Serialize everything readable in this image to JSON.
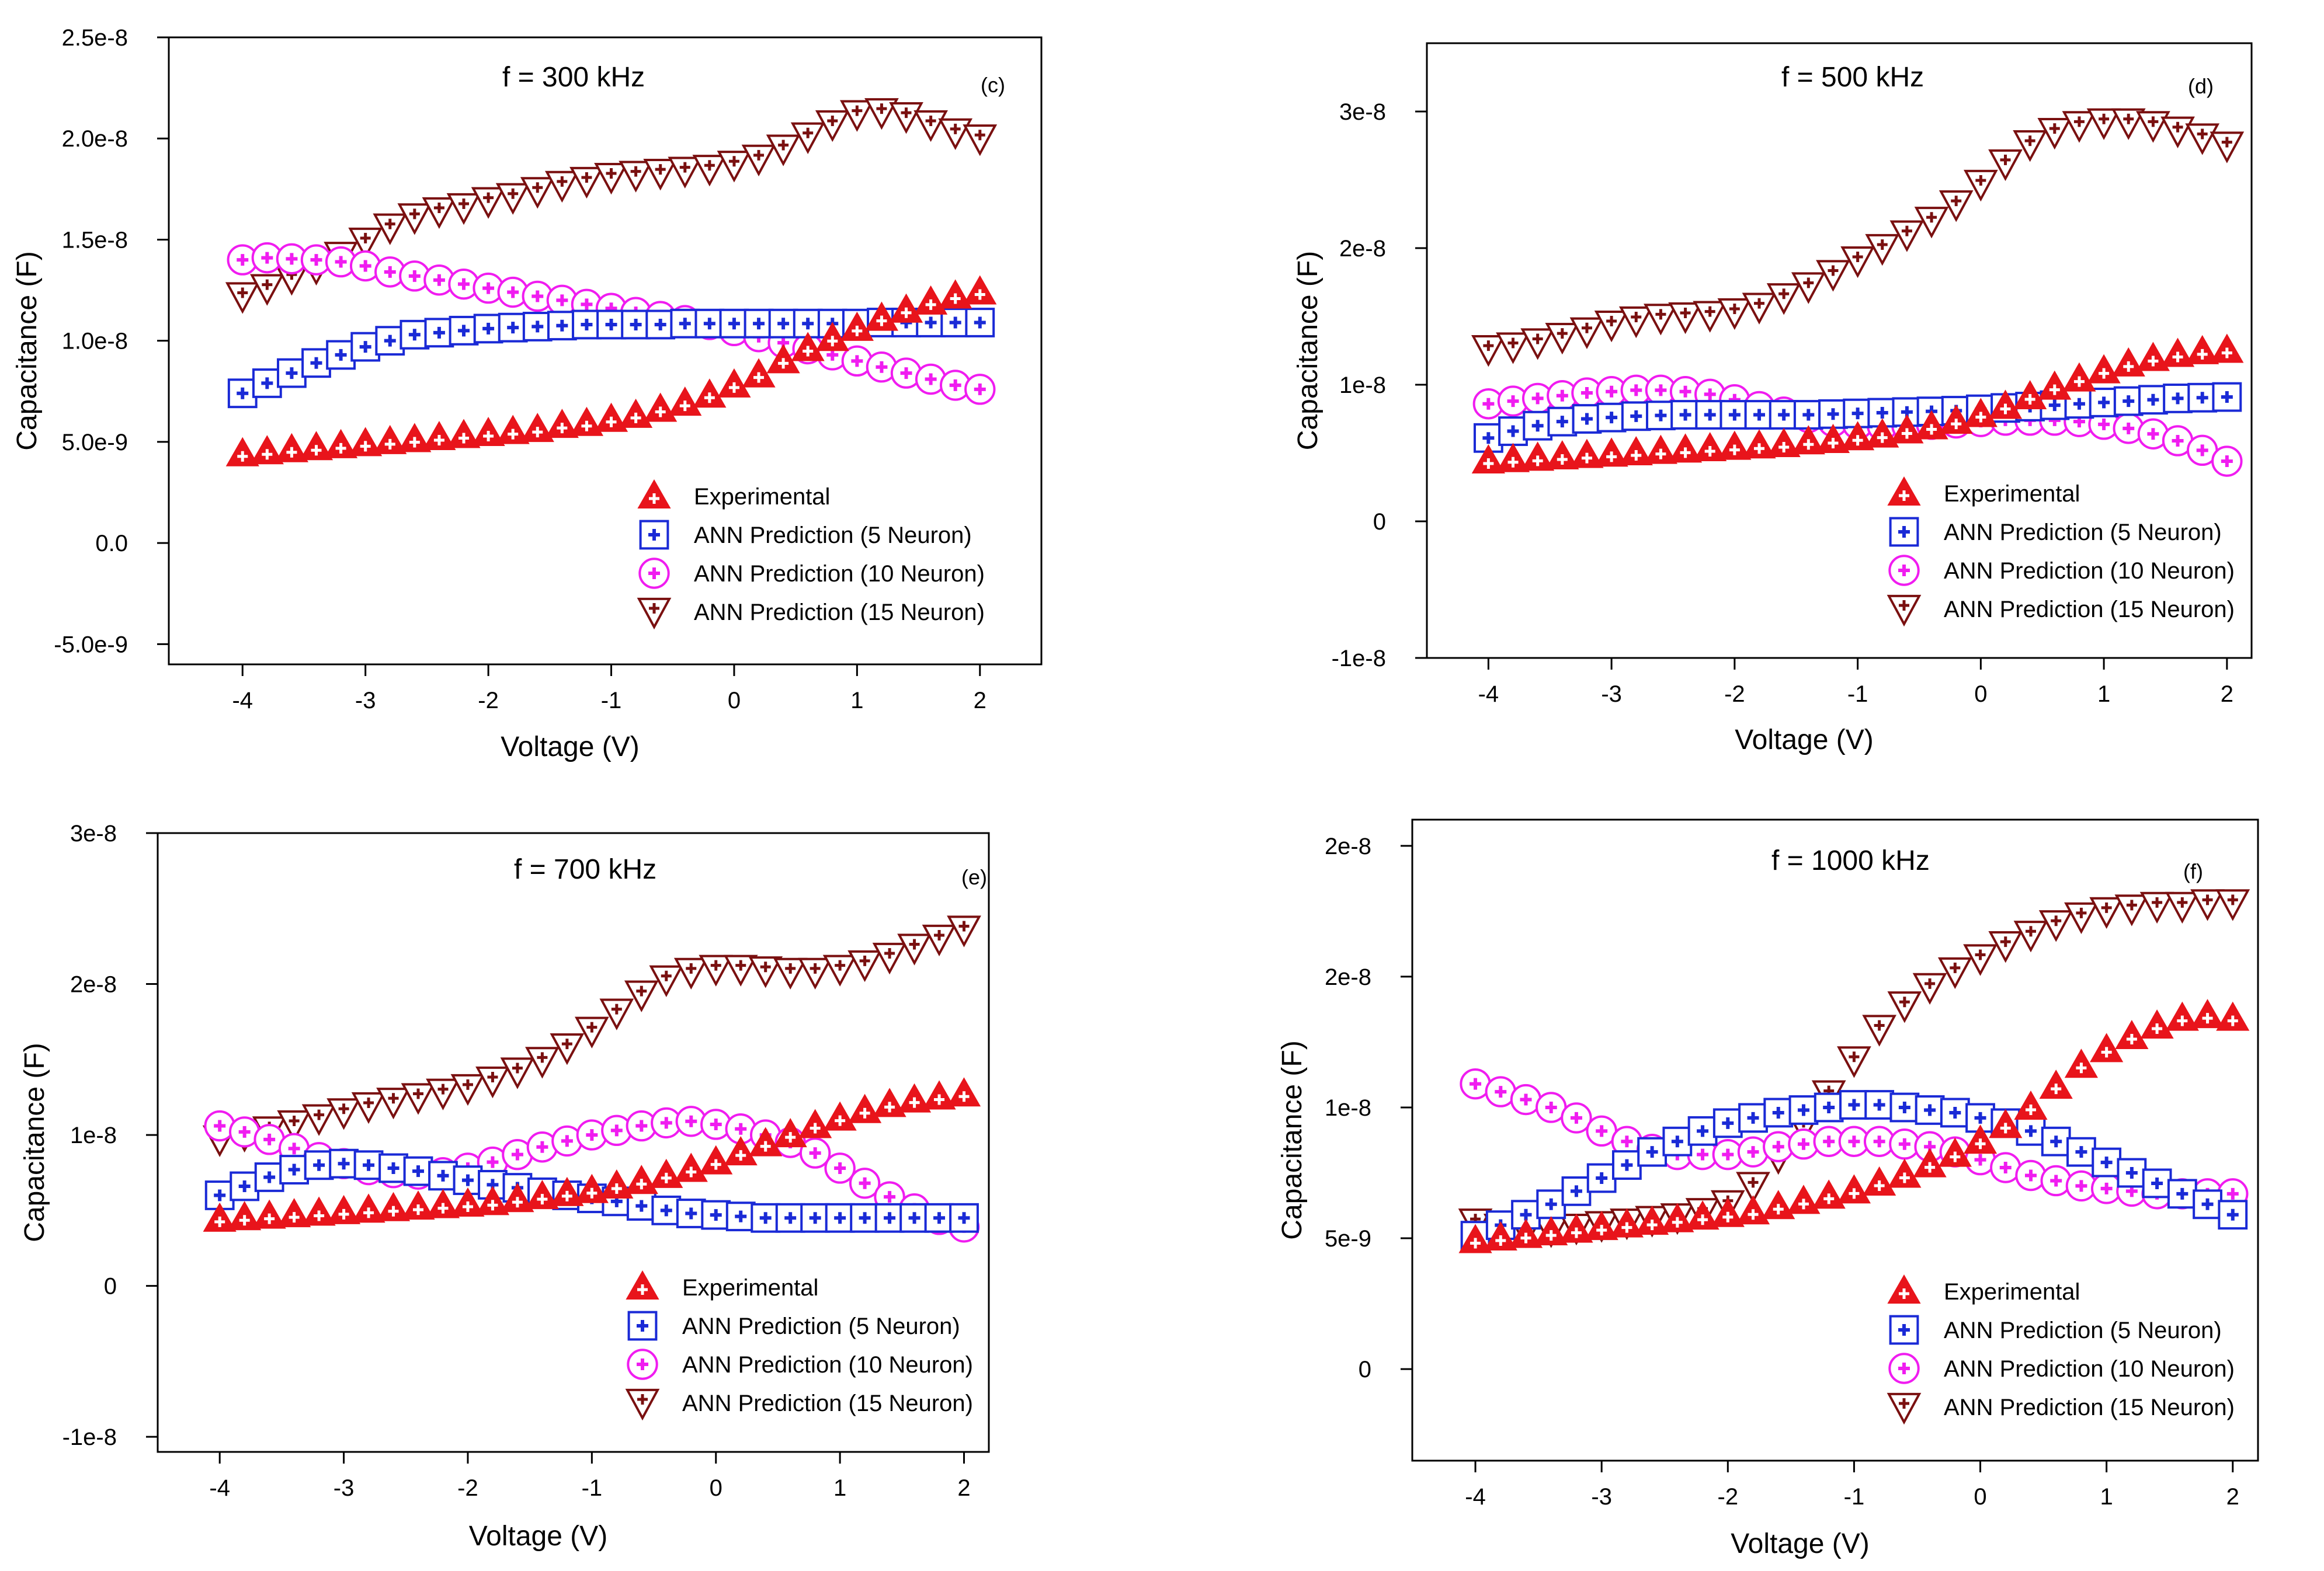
{
  "colors": {
    "experimental": "#e8141b",
    "ann5": "#1a2ad6",
    "ann10": "#f01cf0",
    "ann15": "#7a1010",
    "axis": "#000000"
  },
  "legend_labels": {
    "experimental": "Experimental",
    "ann5": "ANN Prediction (5 Neuron)",
    "ann10": "ANN Prediction (10 Neuron)",
    "ann15": "ANN Prediction (15 Neuron)"
  },
  "chart_data": [
    {
      "type": "scatter",
      "panel": "(c)",
      "title": "f = 300 kHz",
      "xlabel": "Voltage (V)",
      "ylabel": "Capacitance (F)",
      "xlim": [
        -4.6,
        2.5
      ],
      "ylim": [
        -6e-09,
        2.5e-08
      ],
      "xticks": [
        -4,
        -3,
        -2,
        -1,
        0,
        1,
        2
      ],
      "xtick_labels": [
        "-4",
        "-3",
        "-2",
        "-1",
        "0",
        "1",
        "2"
      ],
      "yticks": [
        -5e-09,
        0,
        5e-09,
        1e-08,
        1.5e-08,
        2e-08,
        2.5e-08
      ],
      "ytick_labels": [
        "-5.0e-9",
        "0.0",
        "5.0e-9",
        "1.0e-8",
        "1.5e-8",
        "2.0e-8",
        "2.5e-8"
      ],
      "legend_position": "bottom-right",
      "x": [
        -4.0,
        -3.8,
        -3.6,
        -3.4,
        -3.2,
        -3.0,
        -2.8,
        -2.6,
        -2.4,
        -2.2,
        -2.0,
        -1.8,
        -1.6,
        -1.4,
        -1.2,
        -1.0,
        -0.8,
        -0.6,
        -0.4,
        -0.2,
        0.0,
        0.2,
        0.4,
        0.6,
        0.8,
        1.0,
        1.2,
        1.4,
        1.6,
        1.8,
        2.0
      ],
      "series": [
        {
          "key": "experimental",
          "marker": "triangle-up",
          "values": [
            4.4e-09,
            4.5e-09,
            4.6e-09,
            4.7e-09,
            4.8e-09,
            4.9e-09,
            5e-09,
            5.1e-09,
            5.2e-09,
            5.3e-09,
            5.4e-09,
            5.5e-09,
            5.6e-09,
            5.8e-09,
            5.9e-09,
            6.1e-09,
            6.3e-09,
            6.6e-09,
            6.9e-09,
            7.3e-09,
            7.8e-09,
            8.3e-09,
            9e-09,
            9.6e-09,
            1.01e-08,
            1.06e-08,
            1.11e-08,
            1.15e-08,
            1.19e-08,
            1.22e-08,
            1.24e-08
          ]
        },
        {
          "key": "ann5",
          "marker": "square",
          "values": [
            7.4e-09,
            7.9e-09,
            8.4e-09,
            8.9e-09,
            9.3e-09,
            9.7e-09,
            1e-08,
            1.03e-08,
            1.04e-08,
            1.05e-08,
            1.06e-08,
            1.065e-08,
            1.07e-08,
            1.075e-08,
            1.08e-08,
            1.08e-08,
            1.08e-08,
            1.08e-08,
            1.085e-08,
            1.085e-08,
            1.085e-08,
            1.085e-08,
            1.085e-08,
            1.085e-08,
            1.085e-08,
            1.085e-08,
            1.09e-08,
            1.09e-08,
            1.09e-08,
            1.09e-08,
            1.09e-08
          ]
        },
        {
          "key": "ann10",
          "marker": "circle",
          "values": [
            1.4e-08,
            1.41e-08,
            1.405e-08,
            1.4e-08,
            1.39e-08,
            1.37e-08,
            1.34e-08,
            1.32e-08,
            1.3e-08,
            1.28e-08,
            1.26e-08,
            1.24e-08,
            1.22e-08,
            1.2e-08,
            1.18e-08,
            1.16e-08,
            1.14e-08,
            1.12e-08,
            1.1e-08,
            1.08e-08,
            1.05e-08,
            1.02e-08,
            9.9e-09,
            9.6e-09,
            9.3e-09,
            9e-09,
            8.7e-09,
            8.4e-09,
            8.1e-09,
            7.8e-09,
            7.6e-09
          ]
        },
        {
          "key": "ann15",
          "marker": "triangle-down",
          "values": [
            1.22e-08,
            1.26e-08,
            1.31e-08,
            1.36e-08,
            1.42e-08,
            1.49e-08,
            1.56e-08,
            1.61e-08,
            1.64e-08,
            1.66e-08,
            1.69e-08,
            1.71e-08,
            1.74e-08,
            1.77e-08,
            1.79e-08,
            1.81e-08,
            1.82e-08,
            1.83e-08,
            1.84e-08,
            1.85e-08,
            1.87e-08,
            1.9e-08,
            1.95e-08,
            2.01e-08,
            2.07e-08,
            2.12e-08,
            2.13e-08,
            2.11e-08,
            2.07e-08,
            2.03e-08,
            2e-08
          ]
        }
      ]
    },
    {
      "type": "scatter",
      "panel": "(d)",
      "title": "f = 500 kHz",
      "xlabel": "Voltage (V)",
      "ylabel": "Capacitance (F)",
      "xlim": [
        -4.5,
        2.2
      ],
      "ylim": [
        -1e-08,
        3.5e-08
      ],
      "xticks": [
        -4,
        -3,
        -2,
        -1,
        0,
        1,
        2
      ],
      "xtick_labels": [
        "-4",
        "-3",
        "-2",
        "-1",
        "0",
        "1",
        "2"
      ],
      "yticks": [
        -1e-08,
        0,
        1e-08,
        2e-08,
        3e-08
      ],
      "ytick_labels": [
        "-1e-8",
        "0",
        "1e-8",
        "2e-8",
        "3e-8"
      ],
      "legend_position": "bottom-right",
      "x": [
        -4.0,
        -3.8,
        -3.6,
        -3.4,
        -3.2,
        -3.0,
        -2.8,
        -2.6,
        -2.4,
        -2.2,
        -2.0,
        -1.8,
        -1.6,
        -1.4,
        -1.2,
        -1.0,
        -0.8,
        -0.6,
        -0.4,
        -0.2,
        0.0,
        0.2,
        0.4,
        0.6,
        0.8,
        1.0,
        1.2,
        1.4,
        1.6,
        1.8,
        2.0
      ],
      "series": [
        {
          "key": "experimental",
          "marker": "triangle-up",
          "values": [
            4.4e-09,
            4.5e-09,
            4.6e-09,
            4.7e-09,
            4.8e-09,
            4.9e-09,
            5e-09,
            5.1e-09,
            5.2e-09,
            5.3e-09,
            5.4e-09,
            5.5e-09,
            5.6e-09,
            5.8e-09,
            5.9e-09,
            6.1e-09,
            6.3e-09,
            6.6e-09,
            6.9e-09,
            7.3e-09,
            7.8e-09,
            8.4e-09,
            9.1e-09,
            9.8e-09,
            1.04e-08,
            1.1e-08,
            1.15e-08,
            1.19e-08,
            1.22e-08,
            1.24e-08,
            1.25e-08
          ]
        },
        {
          "key": "ann5",
          "marker": "square",
          "values": [
            6.1e-09,
            6.6e-09,
            7e-09,
            7.3e-09,
            7.5e-09,
            7.6e-09,
            7.7e-09,
            7.75e-09,
            7.8e-09,
            7.8e-09,
            7.8e-09,
            7.8e-09,
            7.8e-09,
            7.8e-09,
            7.85e-09,
            7.9e-09,
            7.95e-09,
            8e-09,
            8.05e-09,
            8.1e-09,
            8.2e-09,
            8.3e-09,
            8.4e-09,
            8.5e-09,
            8.6e-09,
            8.7e-09,
            8.8e-09,
            8.9e-09,
            9e-09,
            9.05e-09,
            9.1e-09
          ]
        },
        {
          "key": "ann10",
          "marker": "circle",
          "values": [
            8.6e-09,
            8.8e-09,
            9e-09,
            9.2e-09,
            9.4e-09,
            9.5e-09,
            9.6e-09,
            9.6e-09,
            9.5e-09,
            9.3e-09,
            8.9e-09,
            8.4e-09,
            8e-09,
            7.6e-09,
            7.3e-09,
            7.1e-09,
            7e-09,
            7e-09,
            7.1e-09,
            7.2e-09,
            7.3e-09,
            7.4e-09,
            7.4e-09,
            7.4e-09,
            7.3e-09,
            7.1e-09,
            6.8e-09,
            6.4e-09,
            5.9e-09,
            5.2e-09,
            4.4e-09
          ]
        },
        {
          "key": "ann15",
          "marker": "triangle-down",
          "values": [
            1.26e-08,
            1.28e-08,
            1.31e-08,
            1.35e-08,
            1.39e-08,
            1.44e-08,
            1.47e-08,
            1.49e-08,
            1.5e-08,
            1.51e-08,
            1.53e-08,
            1.57e-08,
            1.64e-08,
            1.72e-08,
            1.81e-08,
            1.91e-08,
            2e-08,
            2.1e-08,
            2.2e-08,
            2.32e-08,
            2.47e-08,
            2.62e-08,
            2.76e-08,
            2.85e-08,
            2.9e-08,
            2.92e-08,
            2.92e-08,
            2.9e-08,
            2.86e-08,
            2.81e-08,
            2.75e-08
          ]
        }
      ]
    },
    {
      "type": "scatter",
      "panel": "(e)",
      "title": "f = 700 kHz",
      "xlabel": "Voltage (V)",
      "ylabel": "Capacitance (F)",
      "xlim": [
        -4.5,
        2.2
      ],
      "ylim": [
        -1.1e-08,
        3e-08
      ],
      "xticks": [
        -4,
        -3,
        -2,
        -1,
        0,
        1,
        2
      ],
      "xtick_labels": [
        "-4",
        "-3",
        "-2",
        "-1",
        "0",
        "1",
        "2"
      ],
      "yticks": [
        -1e-08,
        0,
        1e-08,
        2e-08,
        3e-08
      ],
      "ytick_labels": [
        "-1e-8",
        "0",
        "1e-8",
        "2e-8",
        "3e-8"
      ],
      "legend_position": "bottom-right",
      "x": [
        -4.0,
        -3.8,
        -3.6,
        -3.4,
        -3.2,
        -3.0,
        -2.8,
        -2.6,
        -2.4,
        -2.2,
        -2.0,
        -1.8,
        -1.6,
        -1.4,
        -1.2,
        -1.0,
        -0.8,
        -0.6,
        -0.4,
        -0.2,
        0.0,
        0.2,
        0.4,
        0.6,
        0.8,
        1.0,
        1.2,
        1.4,
        1.6,
        1.8,
        2.0
      ],
      "series": [
        {
          "key": "experimental",
          "marker": "triangle-up",
          "values": [
            4.4e-09,
            4.5e-09,
            4.6e-09,
            4.7e-09,
            4.8e-09,
            4.9e-09,
            5e-09,
            5.1e-09,
            5.2e-09,
            5.3e-09,
            5.4e-09,
            5.5e-09,
            5.7e-09,
            5.9e-09,
            6.1e-09,
            6.3e-09,
            6.6e-09,
            6.9e-09,
            7.3e-09,
            7.7e-09,
            8.2e-09,
            8.8e-09,
            9.4e-09,
            1e-08,
            1.06e-08,
            1.11e-08,
            1.16e-08,
            1.2e-08,
            1.23e-08,
            1.25e-08,
            1.27e-08
          ]
        },
        {
          "key": "ann5",
          "marker": "square",
          "values": [
            6e-09,
            6.6e-09,
            7.2e-09,
            7.7e-09,
            8e-09,
            8.1e-09,
            8e-09,
            7.8e-09,
            7.6e-09,
            7.3e-09,
            7e-09,
            6.7e-09,
            6.5e-09,
            6.2e-09,
            6e-09,
            5.8e-09,
            5.6e-09,
            5.3e-09,
            5e-09,
            4.8e-09,
            4.7e-09,
            4.6e-09,
            4.5e-09,
            4.5e-09,
            4.5e-09,
            4.5e-09,
            4.5e-09,
            4.5e-09,
            4.5e-09,
            4.5e-09,
            4.5e-09
          ]
        },
        {
          "key": "ann10",
          "marker": "circle",
          "values": [
            1.06e-08,
            1.02e-08,
            9.7e-09,
            9.1e-09,
            8.5e-09,
            8.1e-09,
            7.7e-09,
            7.5e-09,
            7.4e-09,
            7.5e-09,
            7.8e-09,
            8.2e-09,
            8.7e-09,
            9.2e-09,
            9.6e-09,
            1e-08,
            1.03e-08,
            1.06e-08,
            1.08e-08,
            1.09e-08,
            1.07e-08,
            1.04e-08,
            1e-08,
            9.5e-09,
            8.8e-09,
            7.8e-09,
            6.8e-09,
            5.9e-09,
            5.1e-09,
            4.4e-09,
            3.9e-09
          ]
        },
        {
          "key": "ann15",
          "marker": "triangle-down",
          "values": [
            9.7e-09,
            1e-08,
            1.03e-08,
            1.07e-08,
            1.11e-08,
            1.15e-08,
            1.19e-08,
            1.22e-08,
            1.25e-08,
            1.28e-08,
            1.31e-08,
            1.36e-08,
            1.42e-08,
            1.49e-08,
            1.58e-08,
            1.69e-08,
            1.81e-08,
            1.93e-08,
            2.03e-08,
            2.08e-08,
            2.1e-08,
            2.1e-08,
            2.09e-08,
            2.08e-08,
            2.08e-08,
            2.1e-08,
            2.13e-08,
            2.18e-08,
            2.24e-08,
            2.3e-08,
            2.36e-08
          ]
        }
      ]
    },
    {
      "type": "scatter",
      "panel": "(f)",
      "title": "f = 1000 kHz",
      "xlabel": "Voltage (V)",
      "ylabel": "Capacitance (F)",
      "xlim": [
        -4.5,
        2.2
      ],
      "ylim": [
        -3.5e-09,
        2.1e-08
      ],
      "xticks": [
        -4,
        -3,
        -2,
        -1,
        0,
        1,
        2
      ],
      "xtick_labels": [
        "-4",
        "-3",
        "-2",
        "-1",
        "0",
        "1",
        "2"
      ],
      "yticks": [
        0,
        5e-09,
        1e-08,
        1.5e-08,
        2e-08
      ],
      "ytick_labels": [
        "0",
        "5e-9",
        "1e-8",
        "2e-8",
        "2e-8"
      ],
      "legend_position": "bottom-right",
      "x": [
        -4.0,
        -3.8,
        -3.6,
        -3.4,
        -3.2,
        -3.0,
        -2.8,
        -2.6,
        -2.4,
        -2.2,
        -2.0,
        -1.8,
        -1.6,
        -1.4,
        -1.2,
        -1.0,
        -0.8,
        -0.6,
        -0.4,
        -0.2,
        0.0,
        0.2,
        0.4,
        0.6,
        0.8,
        1.0,
        1.2,
        1.4,
        1.6,
        1.8,
        2.0
      ],
      "series": [
        {
          "key": "experimental",
          "marker": "triangle-up",
          "values": [
            4.9e-09,
            5e-09,
            5.1e-09,
            5.2e-09,
            5.3e-09,
            5.4e-09,
            5.5e-09,
            5.6e-09,
            5.7e-09,
            5.8e-09,
            5.9e-09,
            6e-09,
            6.2e-09,
            6.4e-09,
            6.6e-09,
            6.8e-09,
            7.1e-09,
            7.4e-09,
            7.8e-09,
            8.2e-09,
            8.7e-09,
            9.3e-09,
            1e-08,
            1.08e-08,
            1.16e-08,
            1.22e-08,
            1.27e-08,
            1.31e-08,
            1.34e-08,
            1.35e-08,
            1.34e-08
          ]
        },
        {
          "key": "ann5",
          "marker": "square",
          "values": [
            5.1e-09,
            5.5e-09,
            5.9e-09,
            6.3e-09,
            6.8e-09,
            7.3e-09,
            7.8e-09,
            8.3e-09,
            8.7e-09,
            9.1e-09,
            9.4e-09,
            9.6e-09,
            9.8e-09,
            9.9e-09,
            1e-08,
            1.01e-08,
            1.01e-08,
            1e-08,
            9.9e-09,
            9.8e-09,
            9.6e-09,
            9.4e-09,
            9.1e-09,
            8.7e-09,
            8.3e-09,
            7.9e-09,
            7.5e-09,
            7.1e-09,
            6.7e-09,
            6.3e-09,
            5.9e-09
          ]
        },
        {
          "key": "ann10",
          "marker": "circle",
          "values": [
            1.09e-08,
            1.06e-08,
            1.03e-08,
            1e-08,
            9.6e-09,
            9.1e-09,
            8.7e-09,
            8.4e-09,
            8.2e-09,
            8.2e-09,
            8.2e-09,
            8.3e-09,
            8.5e-09,
            8.6e-09,
            8.7e-09,
            8.7e-09,
            8.7e-09,
            8.6e-09,
            8.5e-09,
            8.3e-09,
            8e-09,
            7.7e-09,
            7.4e-09,
            7.2e-09,
            7e-09,
            6.9e-09,
            6.8e-09,
            6.7e-09,
            6.7e-09,
            6.7e-09,
            6.7e-09
          ]
        },
        {
          "key": "ann15",
          "marker": "triangle-down",
          "values": [
            5.6e-09,
            5.4e-09,
            5.3e-09,
            5.3e-09,
            5.4e-09,
            5.5e-09,
            5.6e-09,
            5.7e-09,
            5.8e-09,
            6e-09,
            6.3e-09,
            7e-09,
            8.1e-09,
            9.3e-09,
            1.05e-08,
            1.18e-08,
            1.3e-08,
            1.39e-08,
            1.46e-08,
            1.52e-08,
            1.57e-08,
            1.62e-08,
            1.66e-08,
            1.7e-08,
            1.73e-08,
            1.75e-08,
            1.76e-08,
            1.77e-08,
            1.77e-08,
            1.78e-08,
            1.78e-08
          ]
        }
      ]
    }
  ]
}
